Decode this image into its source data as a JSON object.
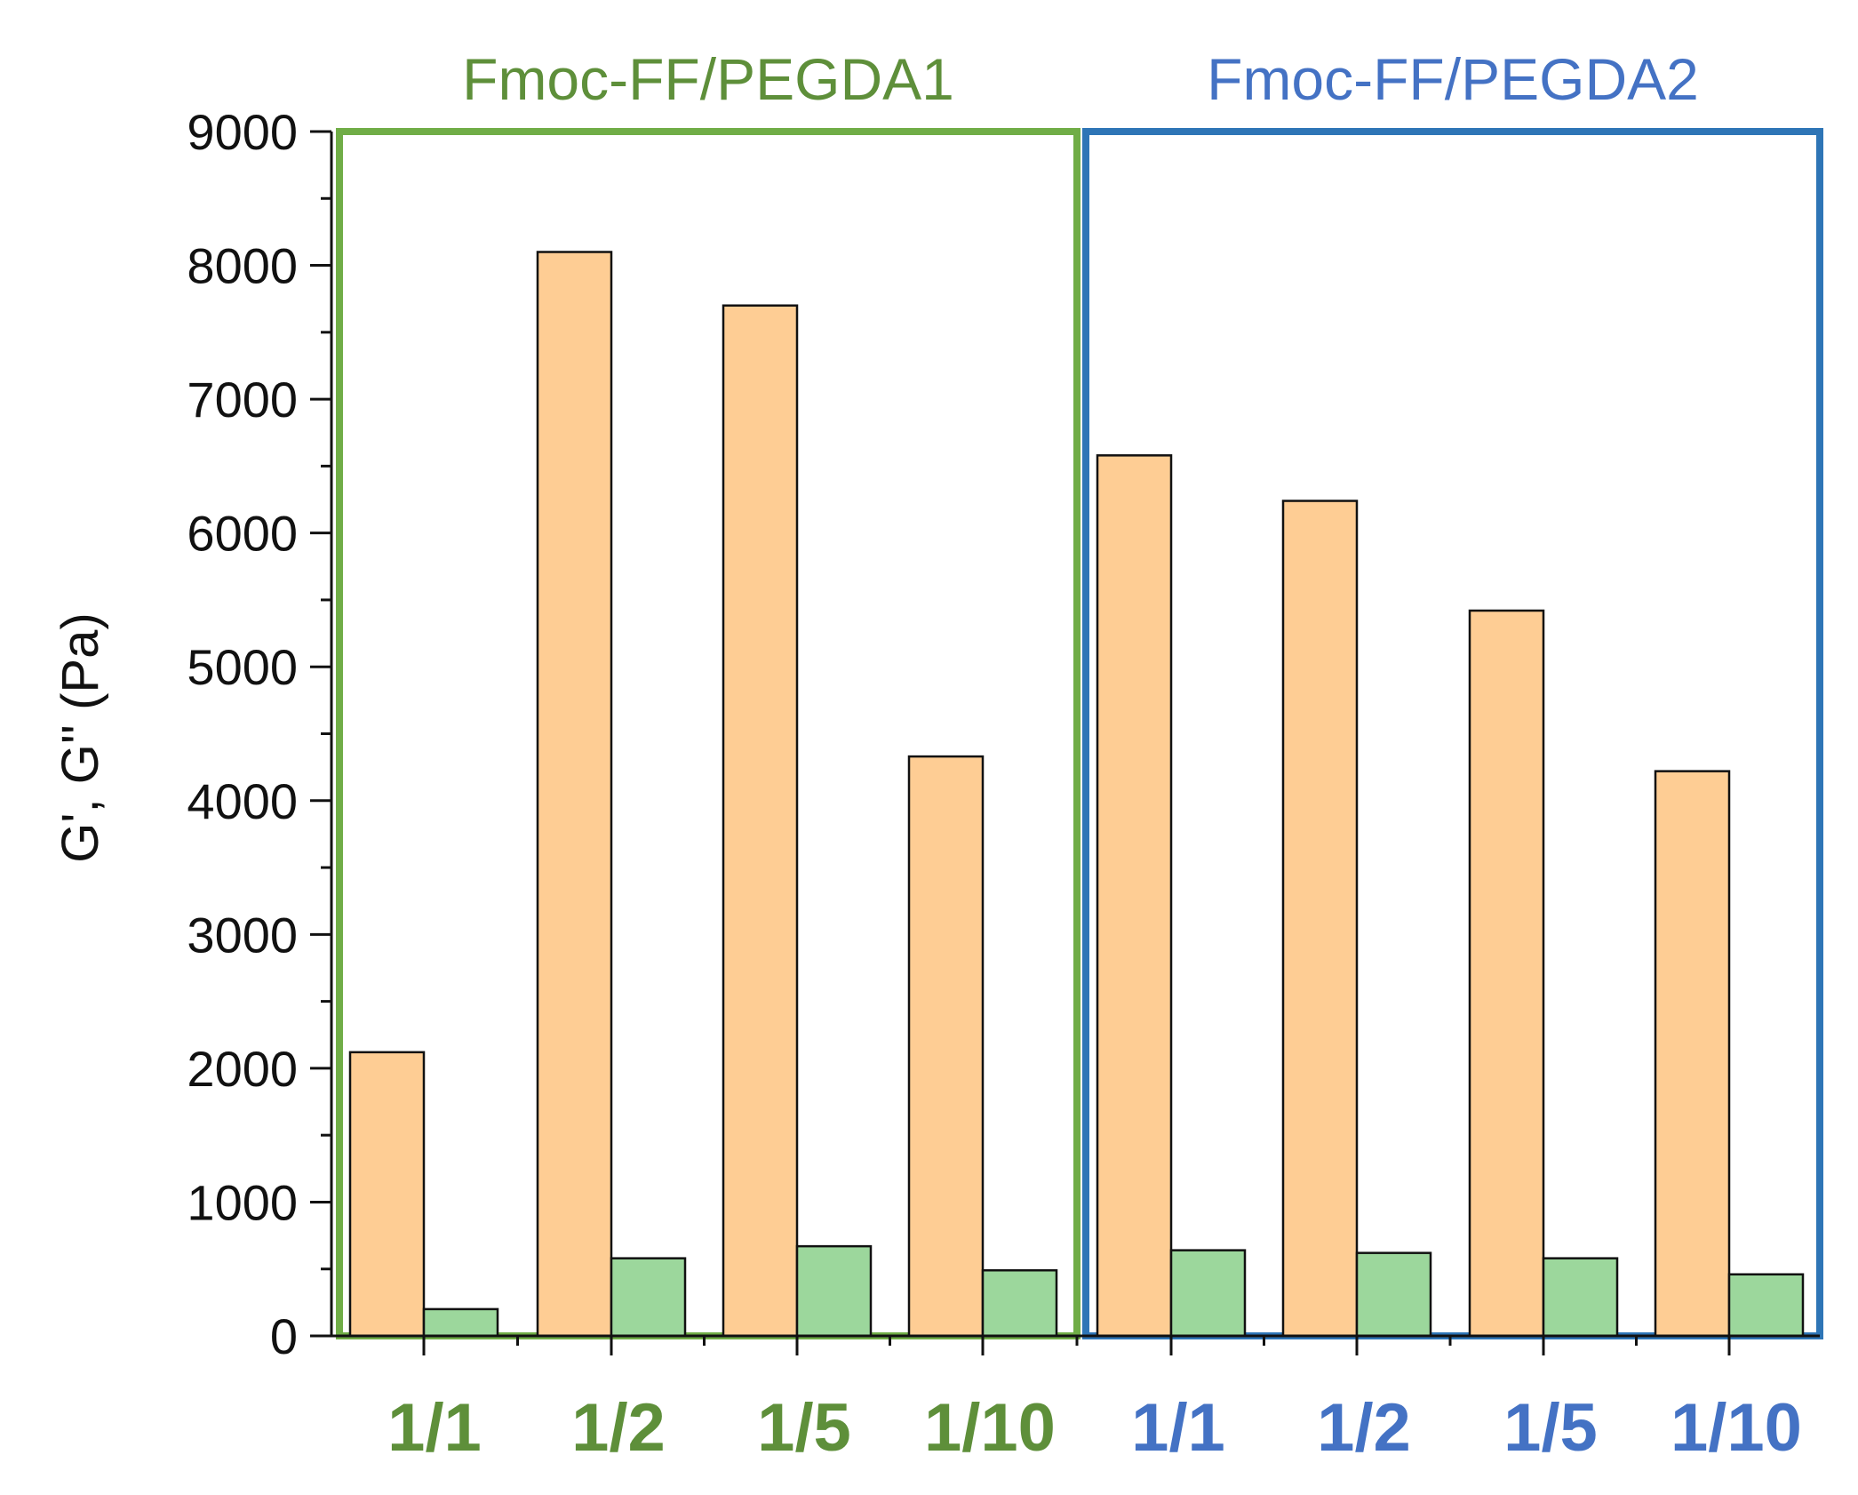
{
  "chart_data": {
    "type": "bar",
    "ylabel": "G', G'' (Pa)",
    "ylim": [
      0,
      9000
    ],
    "yticks": [
      "0",
      "1000",
      "2000",
      "3000",
      "4000",
      "5000",
      "6000",
      "7000",
      "8000",
      "9000"
    ],
    "groups": [
      {
        "title": "Fmoc-FF/PEGDA1",
        "color": "#5e8f3a",
        "box_color": "#70ad47",
        "categories": [
          "1/1",
          "1/2",
          "1/5",
          "1/10"
        ],
        "series": [
          {
            "values": [
              2120,
              8100,
              7700,
              4330
            ],
            "color": "#fecd94"
          },
          {
            "values": [
              200,
              580,
              670,
              490
            ],
            "color": "#9cd79c"
          }
        ]
      },
      {
        "title": "Fmoc-FF/PEGDA2",
        "color": "#4472c4",
        "box_color": "#2e75b6",
        "categories": [
          "1/1",
          "1/2",
          "1/5",
          "1/10"
        ],
        "series": [
          {
            "values": [
              6580,
              6240,
              5420,
              4220
            ],
            "color": "#fecd94"
          },
          {
            "values": [
              640,
              620,
              580,
              460
            ],
            "color": "#9cd79c"
          }
        ]
      }
    ]
  }
}
